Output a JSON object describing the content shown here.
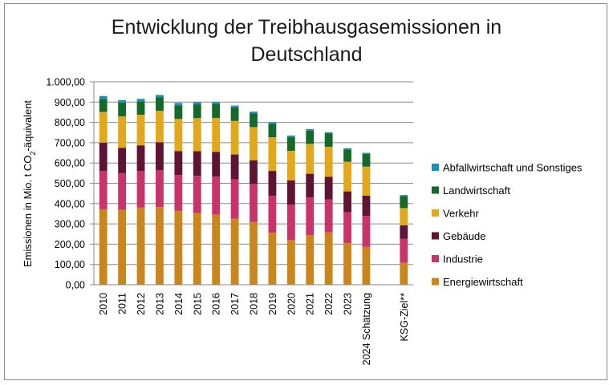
{
  "chart_data": {
    "type": "bar",
    "stacked": true,
    "title": "Entwicklung der Treibhausgasemissionen in Deutschland",
    "title_lines": [
      "Entwicklung der Treibhausgasemissionen in",
      "Deutschland"
    ],
    "ylabel_parts": [
      "Emissionen in Mio. t CO",
      "2",
      "-äquivalent"
    ],
    "xlabel": "",
    "ylim": [
      0,
      1000
    ],
    "yticks": [
      "0,00",
      "100,00",
      "200,00",
      "300,00",
      "400,00",
      "500,00",
      "600,00",
      "700,00",
      "800,00",
      "900,00",
      "1.000,00"
    ],
    "grid": true,
    "legend_position": "right",
    "categories": [
      "2010",
      "2011",
      "2012",
      "2013",
      "2014",
      "2015",
      "2016",
      "2017",
      "2018",
      "2019",
      "2020",
      "2021",
      "2022",
      "2023",
      "2024 Schätzung",
      "KSG-Ziel**"
    ],
    "gap_before_last": true,
    "series": [
      {
        "name": "Energiewirtschaft",
        "color": "#C8861C",
        "values": [
          372,
          369,
          380,
          383,
          364,
          354,
          345,
          325,
          309,
          257,
          220,
          245,
          258,
          205,
          187,
          108
        ]
      },
      {
        "name": "Industrie",
        "color": "#C8346A",
        "values": [
          188,
          181,
          180,
          182,
          177,
          183,
          188,
          195,
          189,
          181,
          175,
          185,
          162,
          153,
          152,
          118
        ]
      },
      {
        "name": "Gebäude",
        "color": "#5E1433",
        "values": [
          140,
          125,
          127,
          137,
          118,
          121,
          122,
          122,
          115,
          123,
          119,
          117,
          112,
          102,
          100,
          67
        ]
      },
      {
        "name": "Verkehr",
        "color": "#E0A81A",
        "values": [
          152,
          155,
          151,
          155,
          158,
          163,
          167,
          165,
          164,
          166,
          146,
          147,
          148,
          146,
          143,
          85
        ]
      },
      {
        "name": "Landwirtschaft",
        "color": "#14692B",
        "values": [
          64,
          67,
          66,
          66,
          67,
          68,
          69,
          67,
          67,
          66,
          67,
          66,
          65,
          61,
          62,
          59
        ]
      },
      {
        "name": "Abfallwirtschaft und Sonstiges",
        "color": "#1D8FBE",
        "values": [
          14,
          13,
          12,
          12,
          12,
          11,
          10,
          9,
          9,
          8,
          8,
          7,
          6,
          6,
          6,
          5
        ]
      }
    ]
  }
}
